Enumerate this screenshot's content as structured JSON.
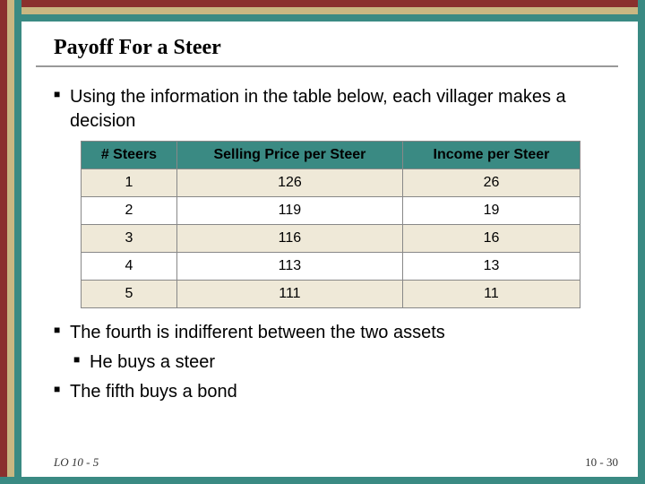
{
  "border": {
    "colors": {
      "teal": "#3a8a83",
      "tan": "#c9b782",
      "maroon": "#8a302e"
    }
  },
  "title": "Payoff For a Steer",
  "bullets_top": [
    {
      "level": 1,
      "text": "Using the information in the table below, each villager makes a decision"
    }
  ],
  "table": {
    "columns": [
      "# Steers",
      "Selling Price per Steer",
      "Income per Steer"
    ],
    "rows": [
      [
        "1",
        "126",
        "26"
      ],
      [
        "2",
        "119",
        "19"
      ],
      [
        "3",
        "116",
        "16"
      ],
      [
        "4",
        "113",
        "13"
      ],
      [
        "5",
        "111",
        "11"
      ]
    ],
    "header_bg": "#3a8a83",
    "row_odd_bg": "#efe9d8",
    "row_even_bg": "#ffffff",
    "border_color": "#888888",
    "font_size": 16
  },
  "bullets_bottom": [
    {
      "level": 1,
      "text": "The fourth is indifferent between the two assets"
    },
    {
      "level": 2,
      "text": "He buys a steer"
    },
    {
      "level": 1,
      "text": "The fifth buys a bond"
    }
  ],
  "footer": {
    "left": "LO 10 - 5",
    "right": "10 - 30"
  }
}
